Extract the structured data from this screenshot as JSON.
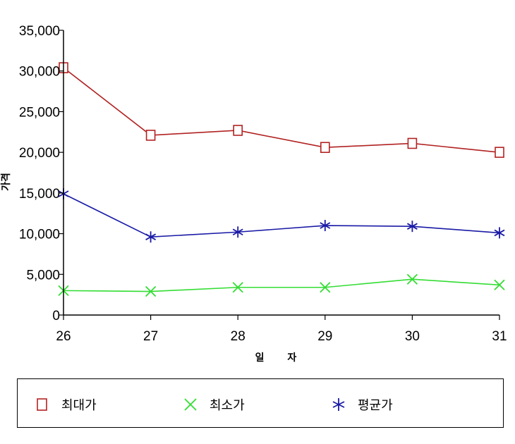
{
  "chart_data": {
    "type": "line",
    "title": "",
    "xlabel": "일 자",
    "ylabel": "가격",
    "x": [
      "26",
      "27",
      "28",
      "29",
      "30",
      "31"
    ],
    "ylim": [
      0,
      35000
    ],
    "yticks": [
      "0",
      "5,000",
      "10,000",
      "15,000",
      "20,000",
      "25,000",
      "30,000",
      "35,000"
    ],
    "grid": false,
    "legend_position": "bottom",
    "series": [
      {
        "name": "최대가",
        "marker": "square",
        "color": "#b22222",
        "values": [
          30400,
          22100,
          22700,
          20600,
          21100,
          20000
        ]
      },
      {
        "name": "최소가",
        "marker": "x",
        "color": "#33dd33",
        "values": [
          3000,
          2900,
          3400,
          3400,
          4400,
          3700
        ]
      },
      {
        "name": "평균가",
        "marker": "star",
        "color": "#1a1aa6",
        "values": [
          14900,
          9600,
          10200,
          11000,
          10900,
          10100
        ]
      }
    ]
  }
}
